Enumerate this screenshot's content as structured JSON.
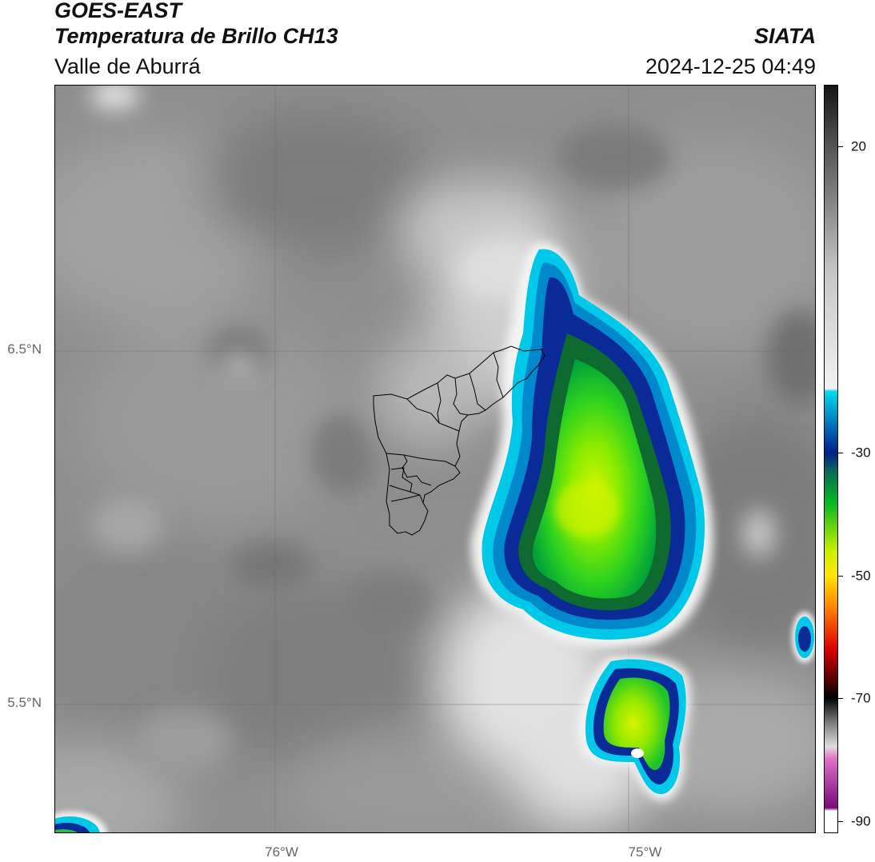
{
  "header": {
    "title_line1": "GOES-EAST",
    "title_line2": "Temperatura de Brillo CH13",
    "region": "Valle de Aburrá",
    "organization": "SIATA",
    "datetime": "2024-12-25 04:49"
  },
  "map": {
    "lat_labels": [
      {
        "value": 6.5,
        "label": "6.5°N"
      },
      {
        "value": 5.5,
        "label": "5.5°N"
      }
    ],
    "lon_labels": [
      {
        "value": -76,
        "label": "76°W"
      },
      {
        "value": -75,
        "label": "75°W"
      }
    ],
    "extent": {
      "lon_min": -76.625,
      "lon_max": -74.53,
      "lat_min": 5.13,
      "lat_max": 7.25
    },
    "gridlines": true
  },
  "colorbar": {
    "range": [
      -92,
      30
    ],
    "ticks": [
      {
        "value": 20,
        "label": "20"
      },
      {
        "value": -30,
        "label": "-30"
      },
      {
        "value": -50,
        "label": "-50"
      },
      {
        "value": -70,
        "label": "-70"
      },
      {
        "value": -90,
        "label": "-90"
      }
    ],
    "colors": {
      "warm_dark": "#151515",
      "mid_gray": "#8a8a8a",
      "cold_white": "#f2f2f2",
      "cyan": "#00d8ee",
      "dark_blue": "#001e8c",
      "green": "#00b820",
      "yellow_green": "#c8f000",
      "yellow": "#ffe600",
      "orange": "#ff8800",
      "red": "#dd0000",
      "black": "#000000",
      "pink": "#e070c8",
      "purple": "#7a0a7a",
      "white": "#ffffff"
    }
  }
}
